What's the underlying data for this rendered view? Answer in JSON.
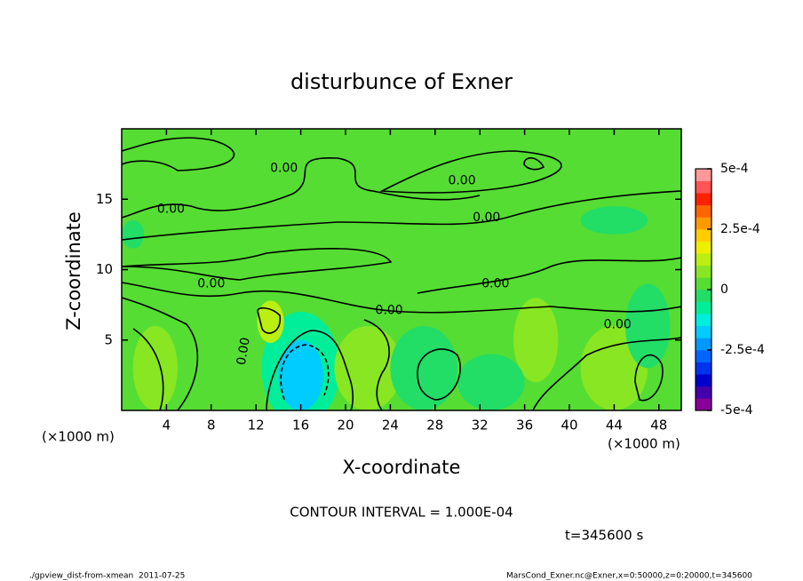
{
  "chart_data": {
    "type": "contour",
    "title": "disturbunce of Exner",
    "x_label": "X-coordinate",
    "y_label": "Z-coordinate",
    "axis_unit": "(×1000 m)",
    "xlim": [
      0,
      50
    ],
    "xticks": [
      4,
      8,
      12,
      16,
      20,
      24,
      28,
      32,
      36,
      40,
      44,
      48
    ],
    "ylim": [
      0,
      20
    ],
    "yticks": [
      5,
      10,
      15
    ],
    "background_value": 2e-05,
    "patches": [
      {
        "x": 16,
        "y": 3,
        "rx": 3.5,
        "ry": 4,
        "value": -6e-05
      },
      {
        "x": 16,
        "y": 2.5,
        "rx": 2,
        "ry": 2.5,
        "value": -0.00017
      },
      {
        "x": 13.3,
        "y": 6.3,
        "rx": 1.2,
        "ry": 1.5,
        "value": 0.00013
      },
      {
        "x": 22,
        "y": 3,
        "rx": 3,
        "ry": 3,
        "value": 6e-05
      },
      {
        "x": 37,
        "y": 5,
        "rx": 2,
        "ry": 3,
        "value": 6e-05
      },
      {
        "x": 44,
        "y": 3,
        "rx": 3,
        "ry": 3,
        "value": 6e-05
      },
      {
        "x": 3,
        "y": 3,
        "rx": 2,
        "ry": 3,
        "value": 6e-05
      },
      {
        "x": 27,
        "y": 3,
        "rx": 3,
        "ry": 3,
        "value": -3e-05
      },
      {
        "x": 33,
        "y": 2,
        "rx": 3,
        "ry": 2,
        "value": -3e-05
      },
      {
        "x": 47,
        "y": 6,
        "rx": 2,
        "ry": 3,
        "value": -3e-05
      },
      {
        "x": 1,
        "y": 12.5,
        "rx": 1,
        "ry": 1,
        "value": -3e-05
      },
      {
        "x": 44,
        "y": 13.5,
        "rx": 3,
        "ry": 1,
        "value": -3e-05
      }
    ],
    "contour_labels": [
      {
        "x": 14.5,
        "y": 17.2,
        "value": 0,
        "label": "0.00"
      },
      {
        "x": 4.4,
        "y": 14.3,
        "value": 0,
        "label": "0.00"
      },
      {
        "x": 30.4,
        "y": 16.3,
        "value": 0,
        "label": "0.00"
      },
      {
        "x": 32.6,
        "y": 13.7,
        "value": 0,
        "label": "0.00"
      },
      {
        "x": 8.0,
        "y": 9.0,
        "value": 0,
        "label": "0.00"
      },
      {
        "x": 33.4,
        "y": 9.0,
        "value": 0,
        "label": "0.00"
      },
      {
        "x": 23.9,
        "y": 7.1,
        "value": 0,
        "label": "0.00"
      },
      {
        "x": 44.3,
        "y": 6.1,
        "value": 0,
        "label": "0.00"
      },
      {
        "x": 10.9,
        "y": 4.2,
        "value": 0,
        "label": "0.00"
      }
    ],
    "colorbar": {
      "lim": [
        -0.0005,
        0.0005
      ],
      "ticks": [
        {
          "value": -0.0005,
          "label": "-5e-4"
        },
        {
          "value": -0.00025,
          "label": "-2.5e-4"
        },
        0,
        {
          "value": 0.00025,
          "label": "2.5e-4"
        },
        {
          "value": 0.0005,
          "label": "5e-4"
        }
      ],
      "colors": [
        "#880099",
        "#4400aa",
        "#0000cc",
        "#0033ee",
        "#0066ff",
        "#0099ff",
        "#00ccff",
        "#00eedd",
        "#00ee99",
        "#22dd66",
        "#55dd33",
        "#88e622",
        "#bbee11",
        "#eeee00",
        "#ffcc00",
        "#ff9900",
        "#ff6600",
        "#ff2200",
        "#ff5555",
        "#ff9999"
      ]
    },
    "contour_interval": "CONTOUR INTERVAL = 1.000E-04",
    "time_label": "t=345600 s",
    "footer_left": "./gpview_dist-from-xmean  2011-07-25",
    "footer_right": "MarsCond_Exner.nc@Exner,x=0:50000,z=0:20000,t=345600"
  }
}
